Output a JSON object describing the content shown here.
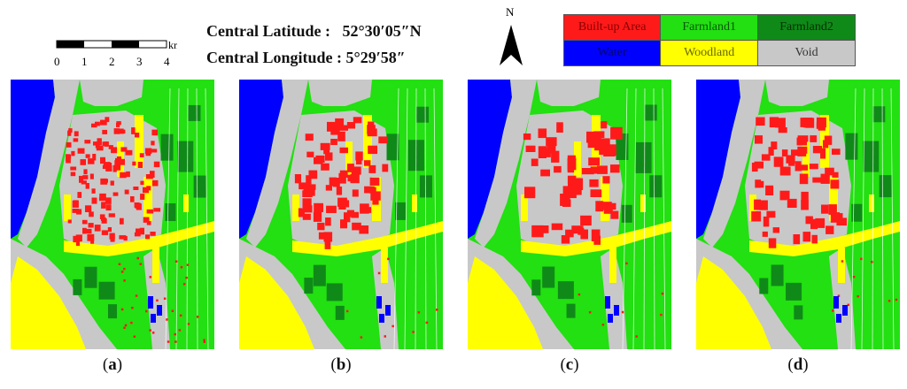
{
  "scalebar": {
    "unit": "km",
    "ticks": [
      "0",
      "1",
      "2",
      "3",
      "4"
    ]
  },
  "coordinates": {
    "latitude_label": "Central Latitude :",
    "latitude_value": "52°30′05″N",
    "longitude_label": "Central Longitude :",
    "longitude_value": "5°29′58″"
  },
  "north_arrow": {
    "label": "N"
  },
  "legend": [
    {
      "label": "Built-up Area",
      "color": "#ff1a1a",
      "text_color": "#8a0000"
    },
    {
      "label": "Farmland1",
      "color": "#22e011",
      "text_color": "#0a5a0a"
    },
    {
      "label": "Farmland2",
      "color": "#0f8a18",
      "text_color": "#063006"
    },
    {
      "label": "Water",
      "color": "#0000ff",
      "text_color": "#06066a"
    },
    {
      "label": "Woodland",
      "color": "#ffff00",
      "text_color": "#6a6a00"
    },
    {
      "label": "Void",
      "color": "#c8c8c8",
      "text_color": "#333333"
    }
  ],
  "panels": [
    {
      "open": "(",
      "letter": "a",
      "close": ")"
    },
    {
      "open": "(",
      "letter": "b",
      "close": ")"
    },
    {
      "open": "(",
      "letter": "c",
      "close": ")"
    },
    {
      "open": "(",
      "letter": "d",
      "close": ")"
    }
  ]
}
